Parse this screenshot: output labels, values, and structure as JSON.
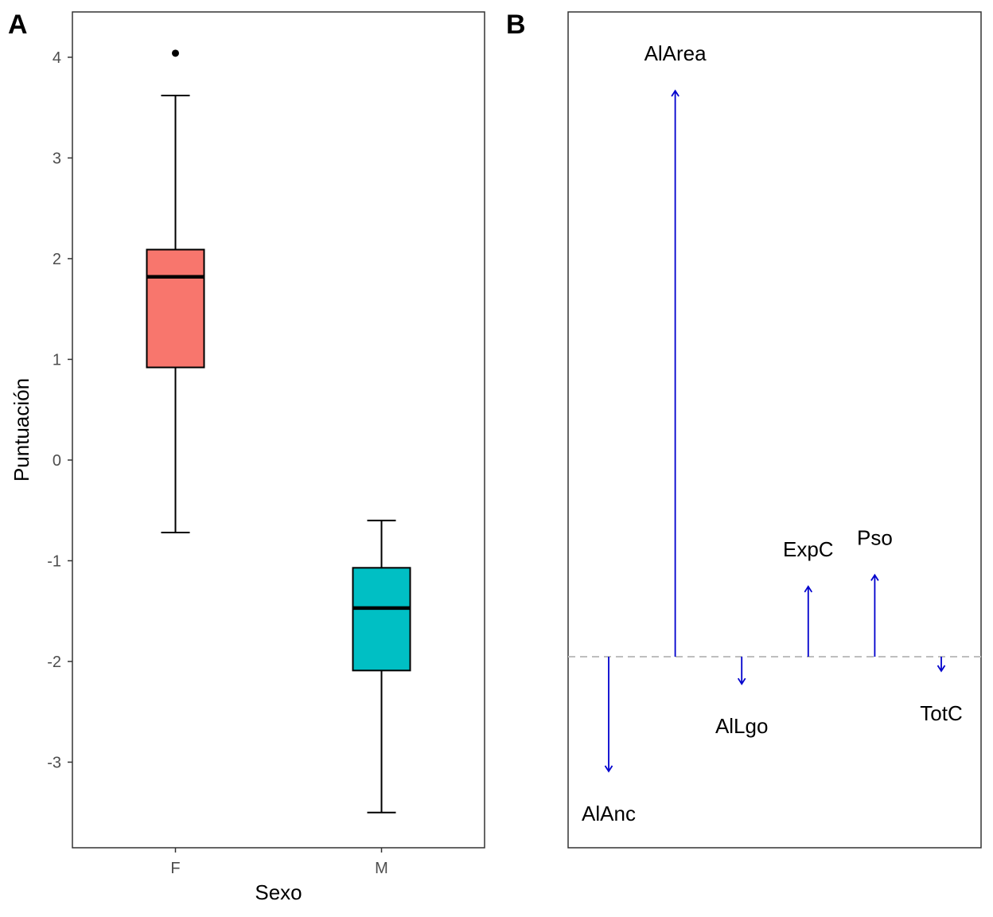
{
  "chart_data": [
    {
      "panel": "A",
      "type": "box",
      "xlabel": "Sexo",
      "ylabel": "Puntuación",
      "ylim": [
        -3.85,
        4.45
      ],
      "yticks": [
        -3,
        -2,
        -1,
        0,
        1,
        2,
        3,
        4
      ],
      "ytick_labels": [
        "-3",
        "-2",
        "-1",
        "0",
        "1",
        "2",
        "3",
        "4"
      ],
      "categories": [
        "F",
        "M"
      ],
      "grid": false,
      "boxes": [
        {
          "category": "F",
          "whisker_low": -0.72,
          "q1": 0.92,
          "median": 1.82,
          "q3": 2.09,
          "whisker_high": 3.62,
          "outliers": [
            4.04
          ],
          "fill": "#F8766D"
        },
        {
          "category": "M",
          "whisker_low": -3.5,
          "q1": -2.09,
          "median": -1.47,
          "q3": -1.07,
          "whisker_high": -0.6,
          "outliers": [],
          "fill": "#00BFC4"
        }
      ]
    },
    {
      "panel": "B",
      "type": "arrow",
      "baseline": 0,
      "ylim": [
        -1.92,
        3.9
      ],
      "axes_shown": false,
      "arrow_color": "#0000CD",
      "baseline_color": "#BEBEBE",
      "variables": [
        {
          "name": "AlAnc",
          "value": -0.8
        },
        {
          "name": "AlArea",
          "value": 3.95
        },
        {
          "name": "AlLgo",
          "value": -0.19
        },
        {
          "name": "ExpC",
          "value": 0.49
        },
        {
          "name": "Pso",
          "value": 0.57
        },
        {
          "name": "TotC",
          "value": -0.1
        }
      ]
    }
  ]
}
